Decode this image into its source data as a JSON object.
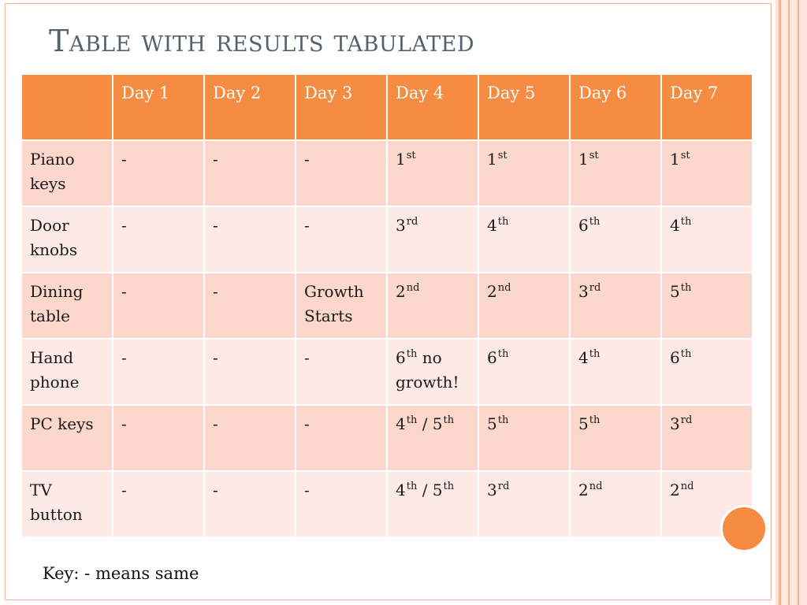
{
  "title": "Table with results tabulated",
  "key_text": "Key: - means same",
  "colors": {
    "accent": "#f68b42",
    "row_dark": "#fbd7cc",
    "row_light": "#fdeae6",
    "title": "#57606e"
  },
  "table": {
    "headers": [
      "",
      "Day 1",
      "Day 2",
      "Day 3",
      "Day 4",
      "Day 5",
      "Day 6",
      "Day 7"
    ],
    "rows": [
      {
        "label": "Piano keys",
        "cells": [
          {
            "t": "-"
          },
          {
            "t": "-"
          },
          {
            "t": "-"
          },
          {
            "t": "1",
            "s": "st"
          },
          {
            "t": "1",
            "s": "st"
          },
          {
            "t": "1",
            "s": "st"
          },
          {
            "t": "1",
            "s": "st"
          }
        ]
      },
      {
        "label": "Door knobs",
        "cells": [
          {
            "t": "-"
          },
          {
            "t": "-"
          },
          {
            "t": "-"
          },
          {
            "t": "3",
            "s": "rd"
          },
          {
            "t": "4",
            "s": "th"
          },
          {
            "t": "6",
            "s": "th"
          },
          {
            "t": "4",
            "s": "th"
          }
        ]
      },
      {
        "label": "Dining table",
        "cells": [
          {
            "t": "-"
          },
          {
            "t": "-"
          },
          {
            "t": "Growth Starts"
          },
          {
            "t": "2",
            "s": "nd"
          },
          {
            "t": "2",
            "s": "nd"
          },
          {
            "t": "3",
            "s": "rd"
          },
          {
            "t": "5",
            "s": "th"
          }
        ]
      },
      {
        "label": "Hand phone",
        "cells": [
          {
            "t": "-"
          },
          {
            "t": "-"
          },
          {
            "t": "-"
          },
          {
            "t": "6",
            "s": "th",
            "a": " no growth!"
          },
          {
            "t": "6",
            "s": "th"
          },
          {
            "t": "4",
            "s": "th"
          },
          {
            "t": "6",
            "s": "th"
          }
        ]
      },
      {
        "label": "PC keys",
        "cells": [
          {
            "t": "-"
          },
          {
            "t": "-"
          },
          {
            "t": "-"
          },
          {
            "t": "4",
            "s": "th",
            "a": " / ",
            "t2": "5",
            "s2": "th"
          },
          {
            "t": "5",
            "s": "th"
          },
          {
            "t": "5",
            "s": "th"
          },
          {
            "t": "3",
            "s": "rd"
          }
        ]
      },
      {
        "label": "TV button",
        "cells": [
          {
            "t": "-"
          },
          {
            "t": "-"
          },
          {
            "t": "-"
          },
          {
            "t": "4",
            "s": "th",
            "a": " / ",
            "t2": "5",
            "s2": "th"
          },
          {
            "t": "3",
            "s": "rd"
          },
          {
            "t": "2",
            "s": "nd"
          },
          {
            "t": "2",
            "s": "nd"
          }
        ]
      }
    ]
  }
}
